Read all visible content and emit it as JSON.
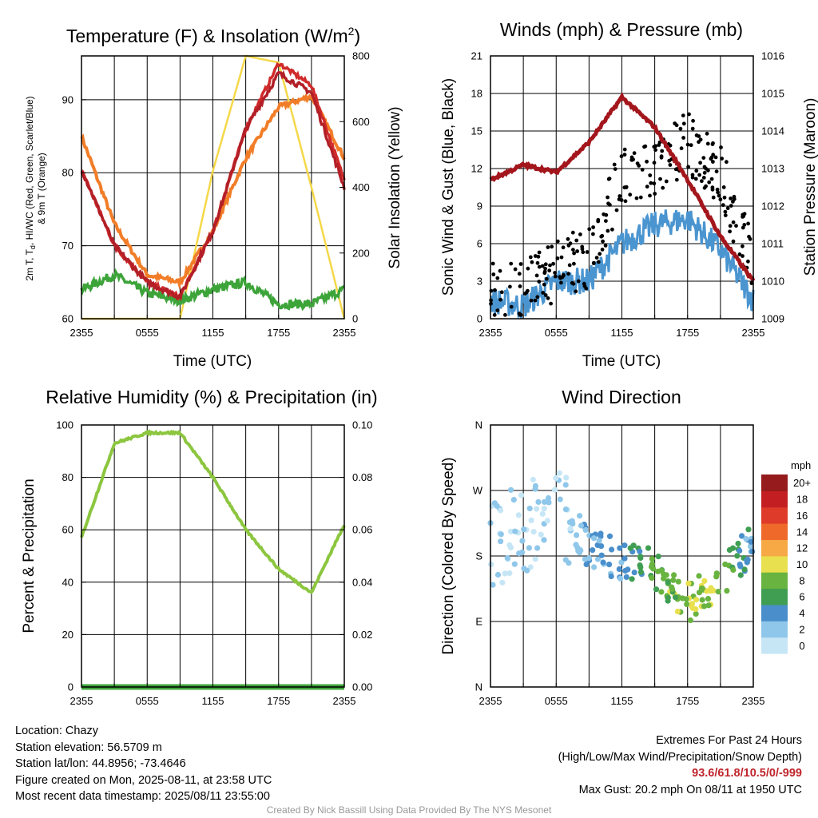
{
  "panels": {
    "temperature": {
      "title": "Temperature (F) & Insolation (W/m",
      "title_sup": "2",
      "title_end": ")",
      "xlabel": "Time (UTC)",
      "ylabel_line1": "2m T, T",
      "ylabel_sub": "d",
      "ylabel_line1_end": ", HI/WC (Red, Green, Scarlet/Blue)",
      "ylabel_line2": "& 9m T (Orange)",
      "y2label": "Solar Insolation (Yellow)",
      "xticks": [
        "2355",
        "0555",
        "1155",
        "1755",
        "2355"
      ],
      "yticks": [
        "60",
        "70",
        "80",
        "90"
      ],
      "y2ticks": [
        "0",
        "200",
        "400",
        "600",
        "800"
      ]
    },
    "winds": {
      "title": "Winds (mph) & Pressure (mb)",
      "xlabel": "Time (UTC)",
      "ylabel": "Sonic Wind & Gust (Blue, Black)",
      "y2label": "Station Pressure (Maroon)",
      "xticks": [
        "2355",
        "0555",
        "1155",
        "1755",
        "2355"
      ],
      "yticks": [
        "0",
        "3",
        "6",
        "9",
        "12",
        "15",
        "18",
        "21"
      ],
      "y2ticks": [
        "1009",
        "1010",
        "1011",
        "1012",
        "1013",
        "1014",
        "1015",
        "1016"
      ]
    },
    "humidity": {
      "title": "Relative Humidity (%) & Precipitation (in)",
      "ylabel": "Percent & Precipitation",
      "xticks": [
        "2355",
        "0555",
        "1155",
        "1755",
        "2355"
      ],
      "yticks": [
        "0",
        "20",
        "40",
        "60",
        "80",
        "100"
      ],
      "y2ticks": [
        "0.00",
        "0.02",
        "0.04",
        "0.06",
        "0.08",
        "0.10"
      ]
    },
    "direction": {
      "title": "Wind Direction",
      "ylabel": "Direction (Colored By Speed)",
      "xticks": [
        "2355",
        "0555",
        "1155",
        "1755",
        "2355"
      ],
      "yticks": [
        "N",
        "E",
        "S",
        "W",
        "N"
      ],
      "colorbar_title": "mph",
      "colorbar_labels": [
        "0",
        "2",
        "4",
        "6",
        "8",
        "10",
        "12",
        "14",
        "16",
        "18",
        "20+"
      ],
      "colorbar_colors": [
        "#c6e6f6",
        "#8fc7ea",
        "#4a8fcb",
        "#3f9e52",
        "#69b340",
        "#e8e04e",
        "#f6a944",
        "#ef6a2a",
        "#de3b2a",
        "#c31f23",
        "#951b1c"
      ]
    }
  },
  "colors": {
    "temp_red": "#b31f27",
    "heat_index_scarlet": "#d02a2a",
    "dewpoint_green": "#3da43a",
    "temp9m_orange": "#f27d28",
    "insolation_yellow": "#f5d84a",
    "wind_blue": "#4a95d0",
    "gust_black": "#000000",
    "pressure_maroon": "#a3161c",
    "rh_green": "#8cc63f",
    "precip_green": "#3da43a"
  },
  "chart_data": [
    {
      "type": "line",
      "panel": "temperature",
      "x": [
        "2355",
        "0255",
        "0555",
        "0855",
        "1155",
        "1455",
        "1755",
        "2055",
        "2355"
      ],
      "xlim": [
        "2355",
        "2355"
      ],
      "ylim": [
        60,
        96
      ],
      "y2lim": [
        0,
        800
      ],
      "series": [
        {
          "id": "temp_2m",
          "values": [
            80.5,
            70,
            65,
            63,
            72,
            86,
            93.6,
            91,
            78
          ]
        },
        {
          "id": "temp_9m",
          "values": [
            85,
            73,
            66,
            65,
            72,
            82,
            89,
            90.5,
            82
          ]
        },
        {
          "id": "dewpoint",
          "values": [
            64,
            66,
            63.5,
            62.5,
            64,
            65,
            62,
            62,
            64
          ]
        },
        {
          "id": "heat_index",
          "values": [
            80.5,
            70,
            65,
            63,
            72,
            86,
            95,
            92,
            79
          ]
        },
        {
          "id": "solar_insolation",
          "axis": "y2",
          "values": [
            0,
            0,
            0,
            0,
            450,
            800,
            780,
            400,
            0
          ]
        }
      ]
    },
    {
      "type": "line",
      "panel": "winds",
      "x": [
        "2355",
        "0255",
        "0555",
        "0855",
        "1155",
        "1455",
        "1755",
        "2055",
        "2355"
      ],
      "xlim": [
        "2355",
        "2355"
      ],
      "ylim": [
        0,
        21
      ],
      "y2lim": [
        1009,
        1016
      ],
      "series": [
        {
          "id": "sonic_wind",
          "values": [
            1.5,
            1,
            3,
            3,
            6,
            7.5,
            8,
            5.5,
            1.5
          ]
        },
        {
          "id": "gust",
          "type": "scatter",
          "values": [
            2,
            2,
            4,
            5,
            11.5,
            12,
            14,
            11.5,
            4
          ]
        },
        {
          "id": "station_pressure",
          "axis": "y2",
          "values": [
            1012.7,
            1013.1,
            1012.9,
            1013.7,
            1014.9,
            1014.1,
            1012.7,
            1011.2,
            1010
          ]
        }
      ]
    },
    {
      "type": "line",
      "panel": "humidity",
      "x": [
        "2355",
        "0255",
        "0555",
        "0855",
        "1155",
        "1455",
        "1755",
        "2055",
        "2355"
      ],
      "xlim": [
        "2355",
        "2355"
      ],
      "ylim": [
        0,
        100
      ],
      "y2lim": [
        0,
        0.1
      ],
      "series": [
        {
          "id": "relative_humidity",
          "values": [
            57,
            93,
            97,
            97,
            80,
            60,
            45,
            36,
            62
          ]
        },
        {
          "id": "precipitation",
          "axis": "y2",
          "values": [
            0,
            0,
            0,
            0,
            0,
            0,
            0,
            0,
            0
          ]
        }
      ]
    },
    {
      "type": "scatter",
      "panel": "direction",
      "x": [
        "2355",
        "0255",
        "0555",
        "0855",
        "1155",
        "1455",
        "1755",
        "2055",
        "2355"
      ],
      "xlim": [
        "2355",
        "2355"
      ],
      "yticks": [
        "N",
        "E",
        "S",
        "W",
        "N"
      ],
      "series": [
        {
          "id": "wind_direction_deg",
          "values": [
            195,
            215,
            250,
            190,
            175,
            160,
            115,
            145,
            200
          ]
        },
        {
          "id": "wind_speed_mph",
          "values": [
            1,
            1,
            1,
            3,
            4,
            7,
            9,
            8,
            3
          ]
        }
      ]
    }
  ],
  "info": {
    "location": "Location: Chazy",
    "elevation": "Station elevation: 56.5709 m",
    "latlon": "Station lat/lon: 44.8956; -73.4646",
    "created": "Figure created on Mon, 2025-08-11, at 23:58 UTC",
    "recent": "Most recent data timestamp: 2025/08/11 23:55:00",
    "extremes_title": "Extremes For Past 24 Hours",
    "extremes_legend": "(High/Low/Max Wind/Precipitation/Snow Depth)",
    "extremes_values": "93.6/61.8/10.5/0/-999",
    "max_gust": "Max Gust: 20.2 mph On 08/11 at 1950 UTC"
  },
  "credit": "Created By Nick Bassill Using Data Provided By The NYS Mesonet"
}
